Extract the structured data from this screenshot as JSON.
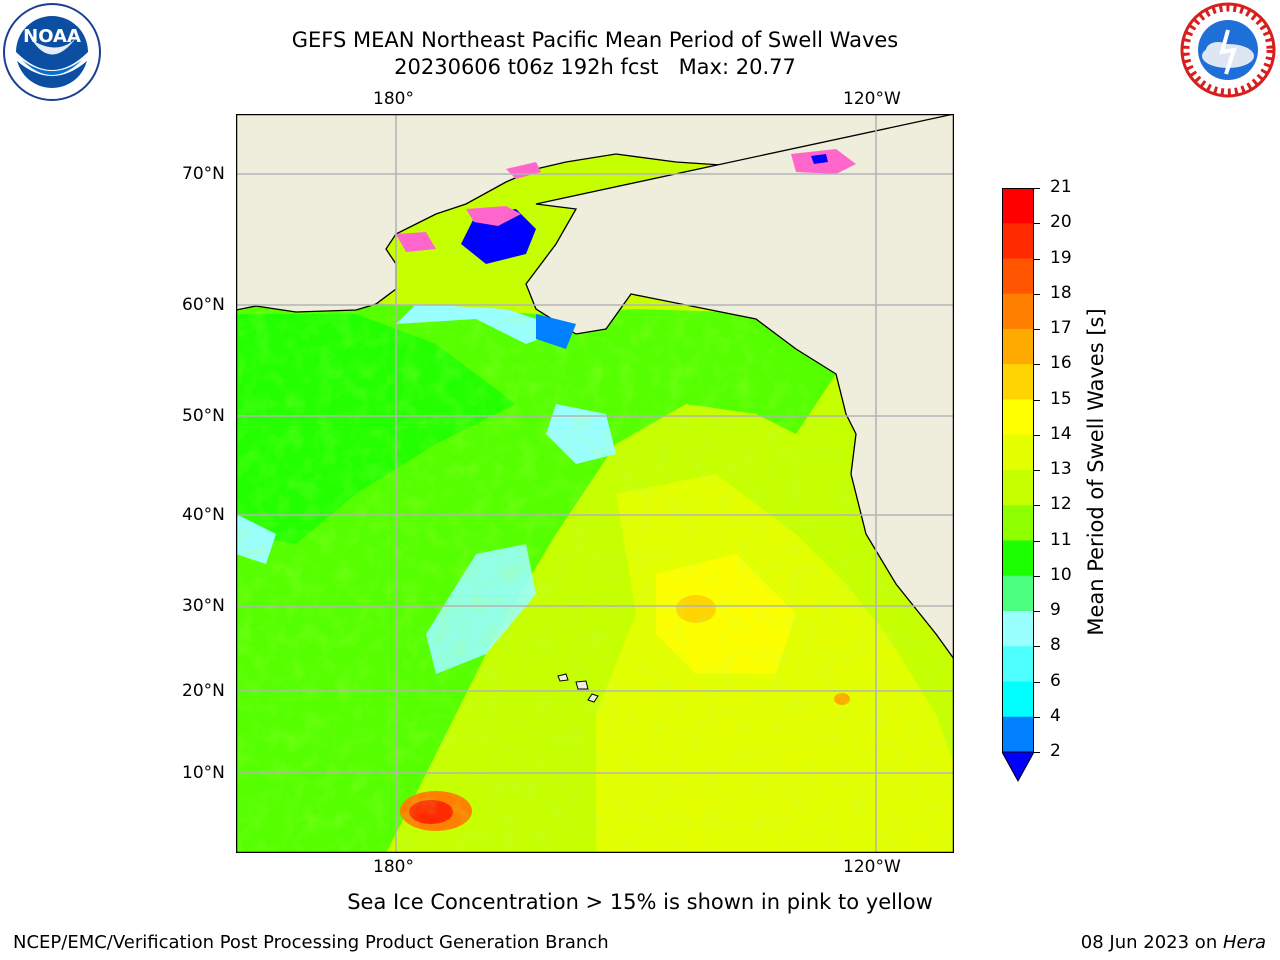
{
  "header": {
    "title_line1": "GEFS MEAN Northeast Pacific Mean Period of Swell Waves",
    "title_line2": "20230606 t06z 192h fcst   Max: 20.77",
    "noaa_logo_text": "NOAA",
    "nws_logo_text": "NATIONAL WEATHER SERVICE"
  },
  "map": {
    "top_lon_labels": [
      "180°",
      "120°W"
    ],
    "bottom_lon_labels": [
      "180°",
      "120°W"
    ],
    "lat_labels": [
      "70°N",
      "60°N",
      "50°N",
      "40°N",
      "30°N",
      "20°N",
      "10°N"
    ],
    "land_color": "#efeddc",
    "grid_color": "#b4b4b4"
  },
  "colorbar": {
    "label": "Mean Period of Swell Waves [s]",
    "ticks": [
      "21",
      "20",
      "19",
      "18",
      "17",
      "16",
      "15",
      "14",
      "13",
      "12",
      "11",
      "10",
      "9",
      "8",
      "6",
      "4",
      "2"
    ],
    "colors": [
      "#fe0000",
      "#ff2a00",
      "#ff5500",
      "#ff7f00",
      "#ffaa00",
      "#ffd400",
      "#ffff00",
      "#e3ff00",
      "#c6ff00",
      "#8eff00",
      "#55ff00",
      "#1cff00",
      "#4dff80",
      "#99ffff",
      "#4dffff",
      "#00ffff",
      "#00ccff",
      "#0080ff",
      "#0000ff"
    ]
  },
  "footer": {
    "note": "Sea Ice Concentration > 15% is shown in pink to yellow",
    "branch": "NCEP/EMC/Verification Post Processing Product Generation Branch",
    "date_prefix": "08 Jun 2023 on ",
    "date_machine": "Hera"
  }
}
